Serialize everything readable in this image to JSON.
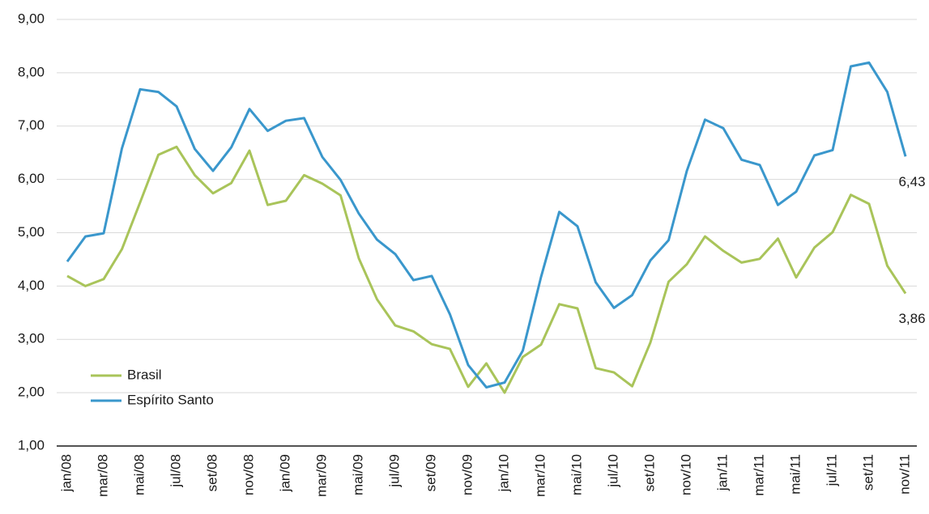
{
  "chart_data": {
    "type": "line",
    "categories": [
      "jan/08",
      null,
      "mar/08",
      null,
      "mai/08",
      null,
      "jul/08",
      null,
      "set/08",
      null,
      "nov/08",
      null,
      "jan/09",
      null,
      "mar/09",
      null,
      "mai/09",
      null,
      "jul/09",
      null,
      "set/09",
      null,
      "nov/09",
      null,
      "jan/10",
      null,
      "mar/10",
      null,
      "mai/10",
      null,
      "jul/10",
      null,
      "set/10",
      null,
      "nov/10",
      null,
      "jan/11",
      null,
      "mar/11",
      null,
      "mai/11",
      null,
      "jul/11",
      null,
      "set/11",
      null,
      "nov/11"
    ],
    "series": [
      {
        "name": "Brasil",
        "color": "#a9c45a",
        "values": [
          4.19,
          4.0,
          4.13,
          4.69,
          5.57,
          6.46,
          6.61,
          6.08,
          5.74,
          5.93,
          6.54,
          5.52,
          5.6,
          6.08,
          5.92,
          5.7,
          4.52,
          3.75,
          3.26,
          3.15,
          2.91,
          2.82,
          2.11,
          2.55,
          2.0,
          2.67,
          2.9,
          3.66,
          3.58,
          2.46,
          2.38,
          2.12,
          2.94,
          4.08,
          4.41,
          4.93,
          4.66,
          4.44,
          4.51,
          4.89,
          4.16,
          4.72,
          5.01,
          5.71,
          5.54,
          4.38,
          3.86
        ],
        "value_labels": [
          null,
          null,
          null,
          null,
          null,
          null,
          null,
          null,
          null,
          null,
          null,
          null,
          null,
          null,
          null,
          null,
          null,
          null,
          null,
          null,
          null,
          null,
          null,
          null,
          null,
          null,
          null,
          null,
          null,
          null,
          null,
          null,
          null,
          null,
          null,
          null,
          null,
          null,
          null,
          null,
          null,
          null,
          null,
          null,
          null,
          null,
          "3,86"
        ]
      },
      {
        "name": "Espírito Santo",
        "color": "#3a97cc",
        "values": [
          4.46,
          4.93,
          4.99,
          6.58,
          7.69,
          7.64,
          7.37,
          6.57,
          6.16,
          6.6,
          7.32,
          6.91,
          7.1,
          7.15,
          6.42,
          5.99,
          5.36,
          4.87,
          4.6,
          4.11,
          4.19,
          3.47,
          2.52,
          2.1,
          2.19,
          2.79,
          4.17,
          5.39,
          5.12,
          4.07,
          3.59,
          3.83,
          4.48,
          4.86,
          6.16,
          7.12,
          6.96,
          6.37,
          6.27,
          5.52,
          5.77,
          6.45,
          6.55,
          8.12,
          8.19,
          7.64,
          6.43
        ],
        "value_labels": [
          null,
          null,
          null,
          null,
          null,
          null,
          null,
          null,
          null,
          null,
          null,
          null,
          null,
          null,
          null,
          null,
          null,
          null,
          null,
          null,
          null,
          null,
          null,
          null,
          null,
          null,
          null,
          null,
          null,
          null,
          null,
          null,
          null,
          null,
          null,
          null,
          null,
          null,
          null,
          null,
          null,
          null,
          null,
          null,
          null,
          null,
          "6,43"
        ]
      }
    ],
    "ylim": [
      1,
      9
    ],
    "yticks": [
      {
        "value": 1,
        "label": "1,00"
      },
      {
        "value": 2,
        "label": "2,00"
      },
      {
        "value": 3,
        "label": "3,00"
      },
      {
        "value": 4,
        "label": "4,00"
      },
      {
        "value": 5,
        "label": "5,00"
      },
      {
        "value": 6,
        "label": "6,00"
      },
      {
        "value": 7,
        "label": "7,00"
      },
      {
        "value": 8,
        "label": "8,00"
      },
      {
        "value": 9,
        "label": "9,00"
      }
    ],
    "grid": true,
    "legend": "lower-left"
  }
}
